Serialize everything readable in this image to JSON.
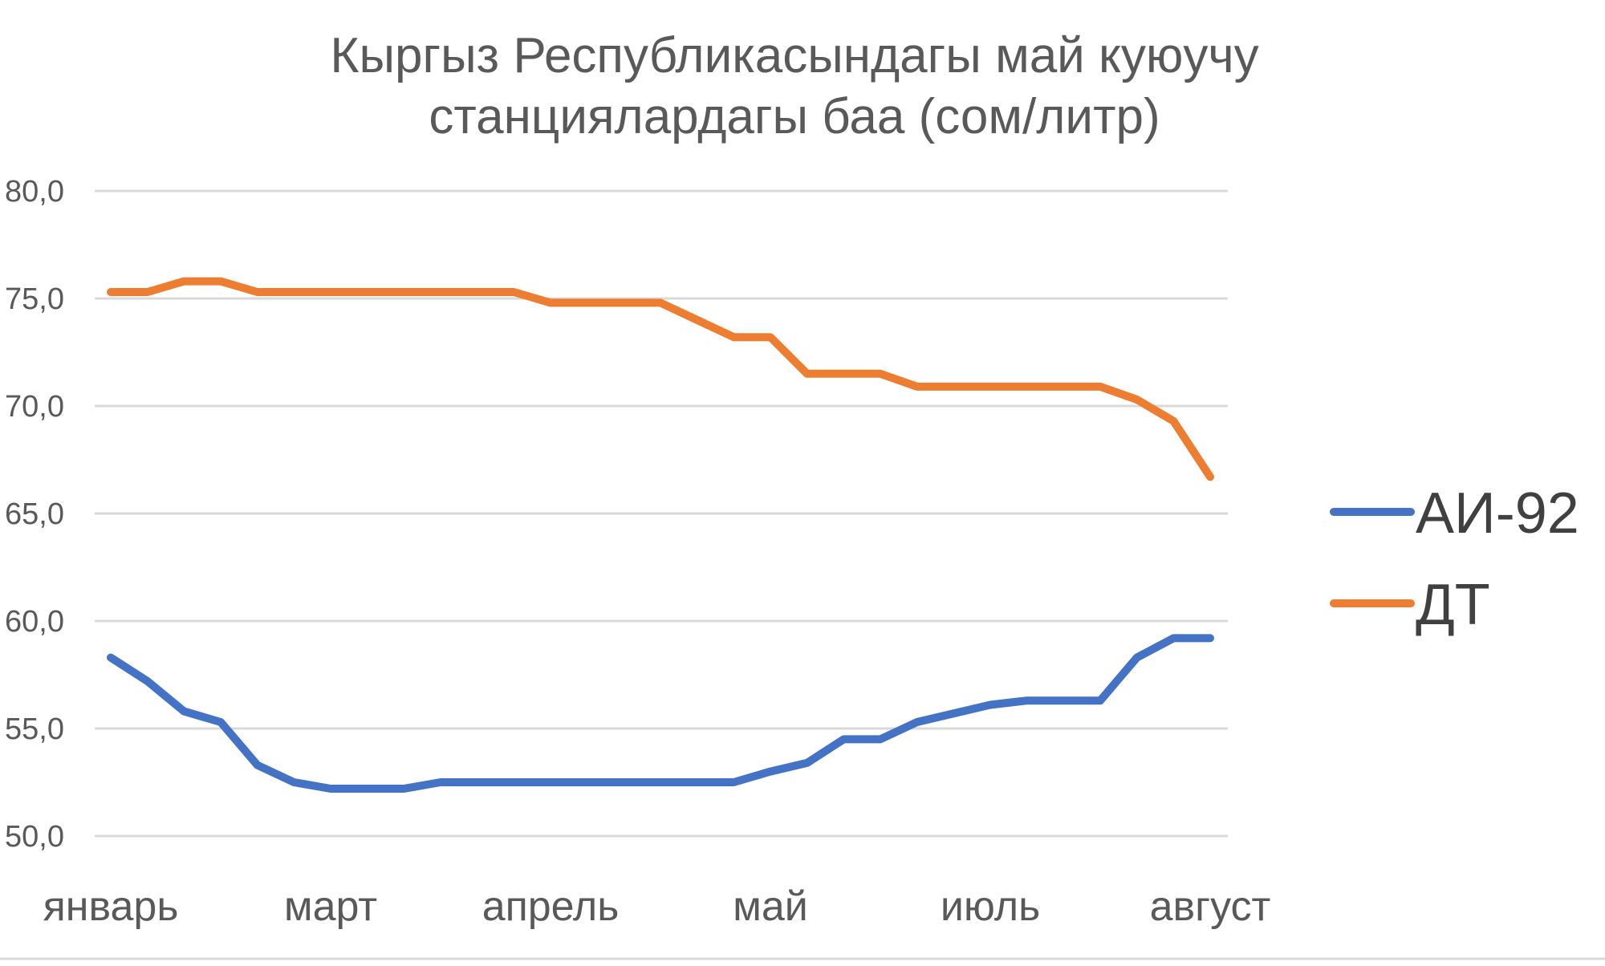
{
  "chart_data": {
    "type": "line",
    "title": "Кыргыз Республикасындагы май куюучу станциялардагы баа (сом/литр)",
    "title_lines": [
      "Кыргыз Республикасындагы май куюучу",
      "станциялардагы баа (сом/литр)"
    ],
    "xlabel": "",
    "ylabel": "",
    "ylim": [
      50,
      80
    ],
    "y_ticks": [
      "50,0",
      "55,0",
      "60,0",
      "65,0",
      "70,0",
      "75,0",
      "80,0"
    ],
    "y_tick_values": [
      50,
      55,
      60,
      65,
      70,
      75,
      80
    ],
    "x": [
      1,
      2,
      3,
      4,
      5,
      6,
      7,
      8,
      9,
      10,
      11,
      12,
      13,
      14,
      15,
      16,
      17,
      18,
      19,
      20,
      21,
      22,
      23,
      24,
      25,
      26,
      27,
      28,
      29,
      30,
      31
    ],
    "x_tick_labels": [
      {
        "label": "январь",
        "at": 1
      },
      {
        "label": "март",
        "at": 7
      },
      {
        "label": "апрель",
        "at": 13
      },
      {
        "label": "май",
        "at": 19
      },
      {
        "label": "июль",
        "at": 25
      },
      {
        "label": "август",
        "at": 31
      }
    ],
    "grid": true,
    "legend_position": "right",
    "series": [
      {
        "name": "АИ-92",
        "color": "#4472C4",
        "values": [
          58.3,
          57.2,
          55.8,
          55.3,
          53.3,
          52.5,
          52.2,
          52.2,
          52.2,
          52.5,
          52.5,
          52.5,
          52.5,
          52.5,
          52.5,
          52.5,
          52.5,
          52.5,
          53.0,
          53.4,
          54.5,
          54.5,
          55.3,
          55.7,
          56.1,
          56.3,
          56.3,
          56.3,
          58.3,
          59.2,
          59.2
        ]
      },
      {
        "name": "ДТ",
        "color": "#ED7D31",
        "values": [
          75.3,
          75.3,
          75.8,
          75.8,
          75.3,
          75.3,
          75.3,
          75.3,
          75.3,
          75.3,
          75.3,
          75.3,
          74.8,
          74.8,
          74.8,
          74.8,
          74.0,
          73.2,
          73.2,
          71.5,
          71.5,
          71.5,
          70.9,
          70.9,
          70.9,
          70.9,
          70.9,
          70.9,
          70.3,
          69.3,
          66.7
        ]
      }
    ]
  }
}
